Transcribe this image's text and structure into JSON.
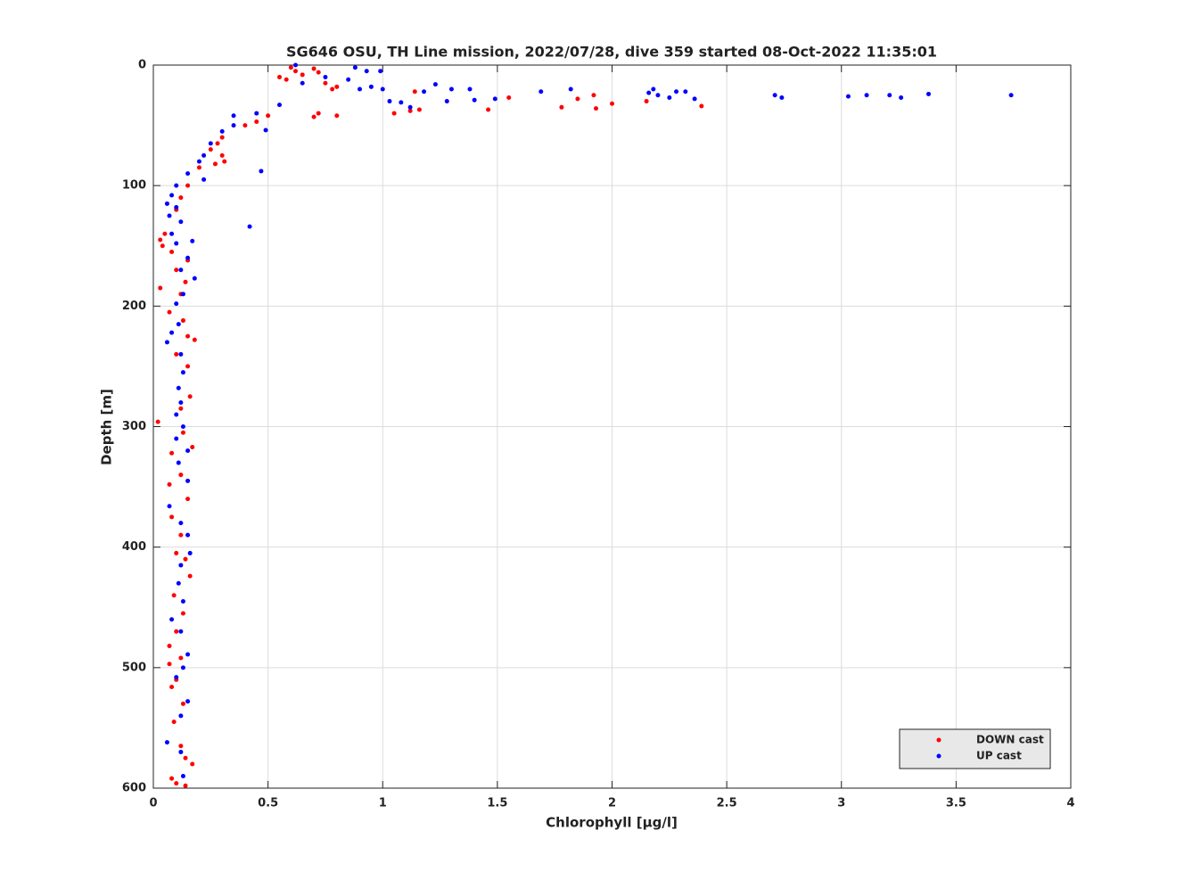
{
  "chart_data": {
    "type": "scatter",
    "title": "SG646 OSU, TH Line mission, 2022/07/28, dive 359 started 08-Oct-2022 11:35:01",
    "x_label": "Chlorophyll [μg/l]",
    "y_label": "Depth [m]",
    "xlim": [
      0,
      4
    ],
    "xticks": [
      0,
      0.5,
      1,
      1.5,
      2,
      2.5,
      3,
      3.5,
      4
    ],
    "ylim": [
      0,
      600
    ],
    "yticks": [
      0,
      100,
      200,
      300,
      400,
      500,
      600
    ],
    "y_reversed": true,
    "grid": true,
    "legend_position": "southeast",
    "series": [
      {
        "name": "DOWN cast",
        "color": "#ff0000",
        "x": [
          0.6,
          0.62,
          0.55,
          0.58,
          0.65,
          0.7,
          0.72,
          0.75,
          0.78,
          0.8,
          0.7,
          0.72,
          0.8,
          1.05,
          1.12,
          1.16,
          1.14,
          1.46,
          1.55,
          1.78,
          1.85,
          1.92,
          1.93,
          2.0,
          2.15,
          2.39,
          0.5,
          0.45,
          0.4,
          0.3,
          0.28,
          0.25,
          0.3,
          0.2,
          0.27,
          0.31,
          0.15,
          0.12,
          0.1,
          0.05,
          0.03,
          0.04,
          0.08,
          0.15,
          0.1,
          0.14,
          0.03,
          0.12,
          0.07,
          0.13,
          0.15,
          0.18,
          0.1,
          0.15,
          0.16,
          0.12,
          0.02,
          0.13,
          0.17,
          0.08,
          0.12,
          0.07,
          0.15,
          0.08,
          0.12,
          0.1,
          0.14,
          0.16,
          0.09,
          0.13,
          0.1,
          0.07,
          0.12,
          0.07,
          0.1,
          0.08,
          0.13,
          0.09,
          0.12,
          0.14,
          0.17,
          0.08,
          0.1,
          0.14
        ],
        "y": [
          2,
          5,
          10,
          12,
          8,
          3,
          6,
          15,
          20,
          18,
          43,
          40,
          42,
          40,
          38,
          37,
          22,
          37,
          27,
          35,
          28,
          25,
          36,
          32,
          30,
          34,
          42,
          47,
          50,
          60,
          65,
          70,
          75,
          85,
          82,
          80,
          100,
          110,
          120,
          140,
          145,
          150,
          155,
          162,
          170,
          180,
          185,
          190,
          205,
          212,
          225,
          228,
          240,
          250,
          275,
          285,
          296,
          305,
          317,
          322,
          340,
          348,
          360,
          375,
          390,
          405,
          410,
          424,
          440,
          455,
          470,
          482,
          492,
          497,
          510,
          516,
          530,
          545,
          565,
          575,
          580,
          592,
          596,
          598
        ]
      },
      {
        "name": "UP cast",
        "color": "#0000ff",
        "x": [
          0.62,
          0.65,
          0.75,
          0.85,
          0.88,
          0.93,
          0.99,
          0.9,
          0.95,
          1.0,
          1.03,
          1.08,
          1.12,
          1.18,
          1.23,
          1.28,
          1.3,
          1.4,
          1.38,
          1.49,
          1.69,
          1.82,
          2.16,
          2.18,
          2.2,
          2.25,
          2.28,
          2.32,
          2.36,
          2.71,
          2.74,
          3.03,
          3.11,
          3.21,
          3.26,
          3.38,
          3.74,
          0.55,
          0.45,
          0.35,
          0.35,
          0.3,
          0.25,
          0.22,
          0.2,
          0.15,
          0.47,
          0.49,
          0.22,
          0.1,
          0.08,
          0.06,
          0.1,
          0.07,
          0.12,
          0.42,
          0.08,
          0.1,
          0.17,
          0.15,
          0.12,
          0.18,
          0.13,
          0.1,
          0.11,
          0.08,
          0.06,
          0.12,
          0.13,
          0.11,
          0.12,
          0.1,
          0.13,
          0.1,
          0.15,
          0.11,
          0.15,
          0.07,
          0.12,
          0.15,
          0.16,
          0.12,
          0.11,
          0.13,
          0.08,
          0.12,
          0.15,
          0.13,
          0.1,
          0.15,
          0.12,
          0.06,
          0.12,
          0.13
        ],
        "y": [
          0,
          15,
          10,
          12,
          2,
          5,
          5,
          20,
          18,
          20,
          30,
          31,
          35,
          22,
          16,
          30,
          20,
          29,
          20,
          28,
          22,
          20,
          23,
          20,
          25,
          27,
          22,
          22,
          28,
          25,
          27,
          26,
          25,
          25,
          27,
          24,
          25,
          33,
          40,
          42,
          50,
          55,
          65,
          75,
          80,
          90,
          88,
          54,
          95,
          100,
          108,
          115,
          118,
          125,
          130,
          134,
          140,
          148,
          146,
          160,
          170,
          177,
          190,
          198,
          215,
          222,
          230,
          240,
          255,
          268,
          280,
          290,
          300,
          310,
          320,
          330,
          345,
          366,
          380,
          390,
          405,
          415,
          430,
          445,
          460,
          470,
          489,
          500,
          508,
          528,
          540,
          562,
          570,
          590
        ]
      }
    ]
  }
}
